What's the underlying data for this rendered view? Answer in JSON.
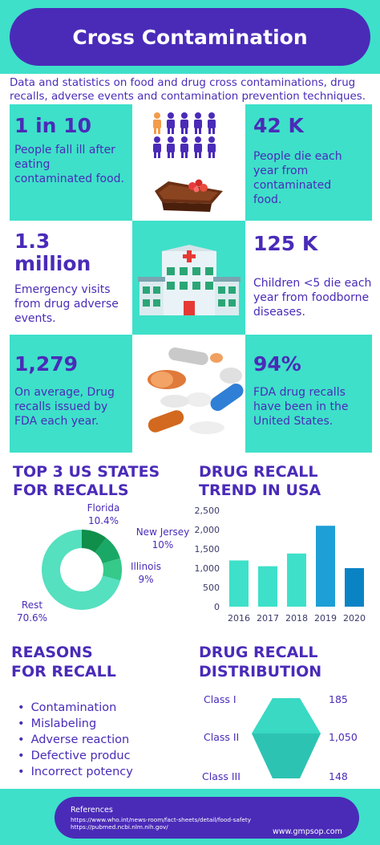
{
  "title": "Cross Contamination",
  "intro": "Data and statistics on food and drug cross contaminations, drug recalls, adverse events and contamination prevention techniques.",
  "stats": [
    {
      "big": "1 in 10",
      "text": "People fall ill after eating contaminated food."
    },
    {
      "big": "42 K",
      "text": "People die each year from contaminated food."
    },
    {
      "big": "1.3 million",
      "text": "Emergency visits from drug adverse events."
    },
    {
      "big": "125 K",
      "text": "Children <5 die each year from foodborne diseases."
    },
    {
      "big": "1,279",
      "text": "On average, Drug recalls issued by FDA each year."
    },
    {
      "big": "94%",
      "text": "FDA drug recalls have been in the United States."
    }
  ],
  "states_section": {
    "title_line1": "TOP 3 US STATES",
    "title_line2": "FOR RECALLS",
    "labels": [
      {
        "name": "Florida",
        "pct": "10.4%"
      },
      {
        "name": "New Jersey",
        "pct": "10%"
      },
      {
        "name": "Illinois",
        "pct": "9%"
      },
      {
        "name": "Rest",
        "pct": "70.6%"
      }
    ]
  },
  "trend_section": {
    "title_line1": "DRUG RECALL",
    "title_line2": "TREND IN USA"
  },
  "reasons_section": {
    "title_line1": "REASONS",
    "title_line2": "FOR RECALL",
    "items": [
      "Contamination",
      "Mislabeling",
      "Adverse reaction",
      "Defective produc",
      "Incorrect potency"
    ]
  },
  "distribution_section": {
    "title_line1": "DRUG RECALL",
    "title_line2": "DISTRIBUTION",
    "classes": [
      {
        "name": "Class I",
        "value": "185"
      },
      {
        "name": "Class II",
        "value": "1,050"
      },
      {
        "name": "Class III",
        "value": "148"
      }
    ]
  },
  "references": {
    "title": "References",
    "lines": [
      "https://www.who.int/news-room/fact-sheets/detail/food-safety",
      "https://pubmed.ncbi.nlm.nih.gov/"
    ],
    "site": "www.gmpsop.com"
  },
  "colors": {
    "purple": "#4a2bb8",
    "teal": "#3ee0c9",
    "bar": "#1e9fd6",
    "bar_dark": "#0a83c5"
  },
  "chart_data": [
    {
      "type": "pie",
      "categories": [
        "Florida",
        "New Jersey",
        "Illinois",
        "Rest"
      ],
      "values": [
        10.4,
        10,
        9,
        70.6
      ],
      "colors": [
        "#0f8f4a",
        "#1aa866",
        "#35c98a",
        "#55e0bf"
      ],
      "donut": true
    },
    {
      "type": "bar",
      "categories": [
        "2016",
        "2017",
        "2018",
        "2019",
        "2020"
      ],
      "values": [
        1200,
        1050,
        1380,
        2100,
        1000
      ],
      "ylim": [
        0,
        2500
      ],
      "yticks": [
        "0",
        "500",
        "1,000",
        "1,500",
        "2,000",
        "2,500"
      ],
      "grid": false
    }
  ]
}
